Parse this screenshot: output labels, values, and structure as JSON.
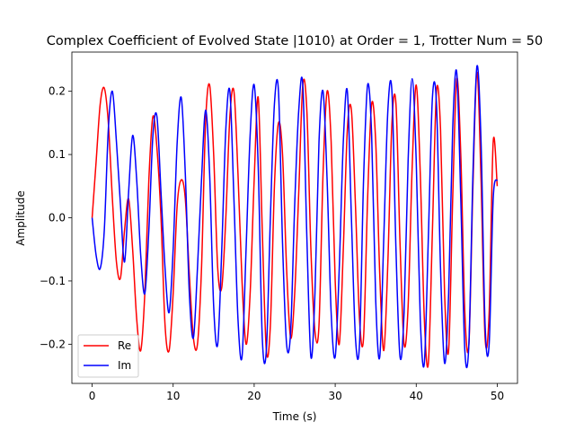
{
  "chart_data": {
    "type": "line",
    "title": "Complex Coefficient of Evolved State |1010⟩ at Order = 1, Trotter Num = 50",
    "xlabel": "Time (s)",
    "ylabel": "Amplitude",
    "xlim": [
      -2.5,
      52.5
    ],
    "ylim": [
      -0.262,
      0.262
    ],
    "xticks": [
      0,
      10,
      20,
      30,
      40,
      50
    ],
    "xtick_labels": [
      "0",
      "10",
      "20",
      "30",
      "40",
      "50"
    ],
    "yticks": [
      -0.2,
      -0.1,
      0.0,
      0.1,
      0.2
    ],
    "ytick_labels": [
      "−0.2",
      "−0.1",
      "0.0",
      "0.1",
      "0.2"
    ],
    "grid": false,
    "legend_position": "lower-left",
    "x": [
      0,
      0.5,
      1,
      1.5,
      2,
      2.5,
      3,
      3.5,
      4,
      4.5,
      5,
      5.5,
      6,
      6.5,
      7,
      7.5,
      8,
      8.5,
      9,
      9.5,
      10,
      10.5,
      11,
      11.5,
      12,
      12.5,
      13,
      13.5,
      14,
      14.5,
      15,
      15.5,
      16,
      16.5,
      17,
      17.5,
      18,
      18.5,
      19,
      19.5,
      20,
      20.5,
      21,
      21.5,
      22,
      22.5,
      23,
      23.5,
      24,
      24.5,
      25,
      25.5,
      26,
      26.5,
      27,
      27.5,
      28,
      28.5,
      29,
      29.5,
      30,
      30.5,
      31,
      31.5,
      32,
      32.5,
      33,
      33.5,
      34,
      34.5,
      35,
      35.5,
      36,
      36.5,
      37,
      37.5,
      38,
      38.5,
      39,
      39.5,
      40,
      40.5,
      41,
      41.5,
      42,
      42.5,
      43,
      43.5,
      44,
      44.5,
      45,
      45.5,
      46,
      46.5,
      47,
      47.5,
      48,
      48.5,
      49,
      49.5,
      50
    ],
    "series": [
      {
        "name": "Re",
        "color": "#ff0000",
        "values": [
          0.0,
          0.09,
          0.18,
          0.205,
          0.15,
          0.03,
          -0.07,
          -0.095,
          -0.02,
          0.03,
          -0.05,
          -0.16,
          -0.21,
          -0.12,
          0.06,
          0.16,
          0.11,
          0.0,
          -0.17,
          -0.21,
          -0.12,
          0.02,
          0.06,
          0.03,
          -0.09,
          -0.19,
          -0.2,
          -0.08,
          0.15,
          0.21,
          0.1,
          -0.08,
          -0.11,
          0.0,
          0.16,
          0.2,
          0.07,
          -0.1,
          -0.2,
          -0.12,
          0.06,
          0.19,
          -0.02,
          -0.21,
          -0.17,
          0.05,
          0.15,
          0.1,
          -0.08,
          -0.19,
          -0.12,
          0.04,
          0.21,
          0.17,
          -0.05,
          -0.18,
          -0.17,
          0.07,
          0.2,
          0.12,
          -0.1,
          -0.2,
          -0.05,
          0.14,
          0.17,
          0.02,
          -0.16,
          -0.19,
          0.03,
          0.18,
          0.12,
          -0.09,
          -0.21,
          -0.07,
          0.15,
          0.18,
          -0.04,
          -0.2,
          -0.14,
          0.08,
          0.21,
          0.07,
          -0.16,
          -0.23,
          -0.02,
          0.2,
          0.14,
          -0.12,
          -0.21,
          0.03,
          0.22,
          0.1,
          -0.15,
          -0.2,
          0.05,
          0.23,
          0.06,
          -0.19,
          -0.15,
          0.12,
          0.05
        ]
      },
      {
        "name": "Im",
        "color": "#0000ff",
        "values": [
          0.0,
          -0.06,
          -0.08,
          -0.02,
          0.14,
          0.2,
          0.12,
          0.02,
          -0.07,
          0.04,
          0.13,
          0.06,
          -0.06,
          -0.12,
          -0.02,
          0.13,
          0.16,
          0.04,
          -0.08,
          -0.15,
          -0.05,
          0.12,
          0.19,
          0.07,
          -0.12,
          -0.19,
          -0.08,
          0.06,
          0.17,
          0.07,
          -0.14,
          -0.2,
          -0.05,
          0.14,
          0.2,
          0.03,
          -0.16,
          -0.22,
          -0.05,
          0.13,
          0.21,
          0.08,
          -0.19,
          -0.21,
          0.0,
          0.18,
          0.2,
          -0.04,
          -0.2,
          -0.18,
          0.02,
          0.17,
          0.21,
          -0.03,
          -0.22,
          -0.12,
          0.12,
          0.2,
          0.06,
          -0.15,
          -0.22,
          -0.08,
          0.12,
          0.2,
          0.0,
          -0.19,
          -0.2,
          0.06,
          0.21,
          0.13,
          -0.13,
          -0.22,
          -0.03,
          0.17,
          0.2,
          -0.05,
          -0.22,
          -0.15,
          0.09,
          0.22,
          0.09,
          -0.16,
          -0.23,
          -0.03,
          0.19,
          0.18,
          -0.08,
          -0.23,
          -0.12,
          0.14,
          0.23,
          0.03,
          -0.21,
          -0.2,
          0.07,
          0.24,
          0.12,
          -0.17,
          -0.2,
          0.03,
          0.06
        ]
      }
    ]
  }
}
